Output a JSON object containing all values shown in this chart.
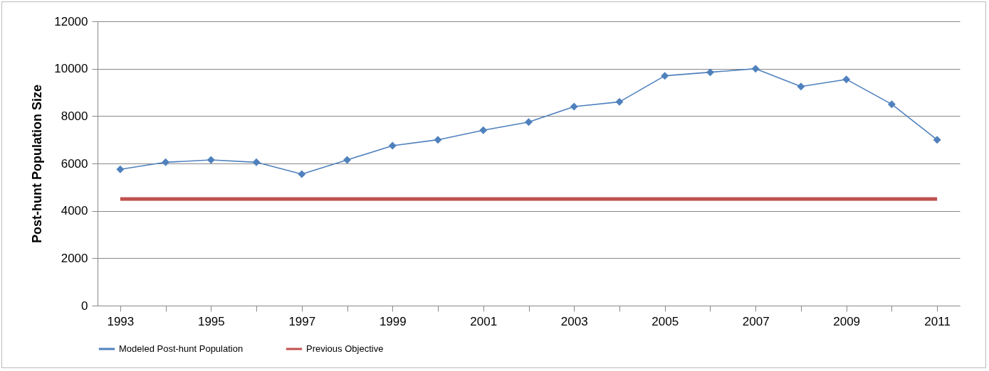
{
  "chart_data": {
    "type": "line",
    "ylabel": "Post-hunt Population  Size",
    "categories": [
      "1993",
      null,
      "1995",
      null,
      "1997",
      null,
      "1999",
      null,
      "2001",
      null,
      "2003",
      null,
      "2005",
      null,
      "2007",
      null,
      "2009",
      null,
      "2011"
    ],
    "series": [
      {
        "name": "Modeled Post-hunt  Population",
        "color": "#4f81bd",
        "marker": "diamond",
        "values": [
          5750,
          6050,
          6150,
          6050,
          5550,
          6150,
          6750,
          7000,
          7400,
          7750,
          8400,
          8600,
          9700,
          9850,
          10000,
          9250,
          9550,
          8500,
          7000
        ]
      },
      {
        "name": "Previous Objective",
        "color": "#c0504d",
        "marker": "none",
        "values": [
          4500,
          4500,
          4500,
          4500,
          4500,
          4500,
          4500,
          4500,
          4500,
          4500,
          4500,
          4500,
          4500,
          4500,
          4500,
          4500,
          4500,
          4500,
          4500
        ]
      }
    ],
    "ylim": [
      0,
      12000
    ],
    "yticks": [
      0,
      2000,
      4000,
      6000,
      8000,
      10000,
      12000
    ],
    "grid": "y",
    "legend": "bottom"
  }
}
